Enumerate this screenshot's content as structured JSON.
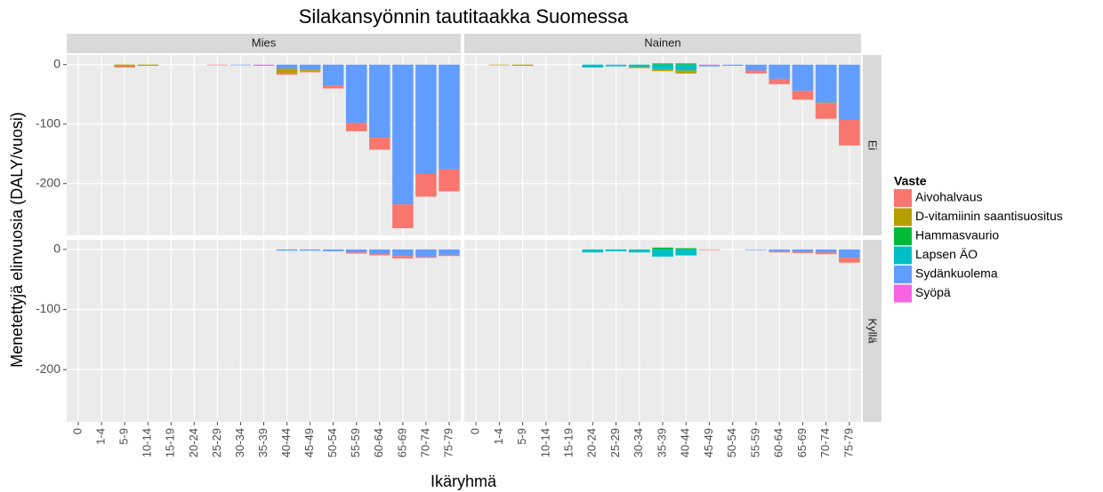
{
  "chart_data": {
    "type": "bar",
    "stacked": true,
    "title": "Silakansyönnin tautitaakka Suomessa",
    "xlabel": "Ikäryhmä",
    "ylabel": "Menetettyjä elinvuosia (DALY/vuosi)",
    "legend_title": "Vaste",
    "facet_cols": [
      "Mies",
      "Nainen"
    ],
    "facet_rows": [
      "Ei",
      "Kyllä"
    ],
    "categories": [
      "0",
      "1-4",
      "5-9",
      "10-14",
      "15-19",
      "20-24",
      "25-29",
      "30-34",
      "35-39",
      "40-44",
      "45-49",
      "50-54",
      "55-59",
      "60-64",
      "65-69",
      "70-74",
      "75-79"
    ],
    "ylim": [
      -287,
      16
    ],
    "yticks": [
      0,
      -100,
      -200
    ],
    "grid": true,
    "series": [
      {
        "name": "Aivohalvaus",
        "color": "#F8766D",
        "values": [
          [
            0,
            0,
            -2,
            0,
            0,
            0,
            -1,
            0,
            0,
            -3,
            -2,
            -5,
            -14,
            -20,
            -40,
            -38,
            -37
          ],
          [
            0,
            0,
            0,
            0,
            0,
            0,
            0,
            0,
            0,
            0,
            0,
            0,
            -5,
            -9,
            -15,
            -26,
            -43
          ],
          [
            0,
            0,
            0,
            0,
            0,
            0,
            0,
            0,
            0,
            0,
            0,
            0,
            -2,
            -2,
            -4,
            -2,
            -2
          ],
          [
            0,
            0,
            0,
            0,
            0,
            0,
            0,
            0,
            0,
            0,
            -1,
            0,
            0,
            -2,
            -2,
            -3,
            -8
          ]
        ]
      },
      {
        "name": "D-vitamiinin saantisuositus",
        "color": "#B79F00",
        "values": [
          [
            0,
            0,
            -3,
            -2,
            0,
            0,
            0,
            0,
            0,
            -7,
            -2,
            0,
            0,
            0,
            0,
            0,
            0
          ],
          [
            0,
            -1,
            -2,
            0,
            0,
            0,
            0,
            -2,
            -3,
            -5,
            0,
            0,
            0,
            0,
            0,
            -1,
            0
          ],
          [
            0,
            0,
            0,
            0,
            0,
            0,
            0,
            0,
            0,
            0,
            0,
            0,
            0,
            0,
            0,
            0,
            0
          ],
          [
            0,
            0,
            0,
            0,
            0,
            0,
            0,
            0,
            0,
            0,
            0,
            0,
            0,
            0,
            0,
            0,
            0
          ]
        ]
      },
      {
        "name": "Hammasvaurio",
        "color": "#00BA38",
        "values": [
          [
            0,
            0,
            0,
            0,
            0,
            0,
            0,
            0,
            0,
            0,
            0,
            0,
            0,
            0,
            0,
            0,
            0
          ],
          [
            0,
            0,
            0,
            0,
            0,
            0,
            0,
            0,
            2,
            2,
            0,
            0,
            0,
            0,
            0,
            0,
            0
          ],
          [
            0,
            0,
            0,
            0,
            0,
            0,
            0,
            0,
            0,
            0,
            0,
            0,
            0,
            0,
            0,
            0,
            0
          ],
          [
            0,
            0,
            0,
            0,
            0,
            0,
            0,
            0,
            3,
            2,
            0,
            0,
            0,
            0,
            0,
            0,
            0
          ]
        ]
      },
      {
        "name": "Lapsen ÄO",
        "color": "#00BFC4",
        "values": [
          [
            0,
            0,
            0,
            0,
            0,
            0,
            0,
            0,
            0,
            0,
            0,
            0,
            0,
            0,
            0,
            0,
            0
          ],
          [
            0,
            0,
            0,
            0,
            0,
            -5,
            -2,
            -4,
            -8,
            -10,
            0,
            0,
            0,
            0,
            0,
            0,
            0
          ],
          [
            0,
            0,
            0,
            0,
            0,
            0,
            0,
            0,
            0,
            0,
            0,
            0,
            0,
            0,
            0,
            0,
            0
          ],
          [
            0,
            0,
            0,
            0,
            0,
            -5,
            -3,
            -5,
            -12,
            -10,
            0,
            0,
            0,
            0,
            0,
            0,
            0
          ]
        ]
      },
      {
        "name": "Sydänkuolema",
        "color": "#619CFF",
        "values": [
          [
            0,
            0,
            0,
            0,
            0,
            0,
            0,
            -1,
            -1,
            -7,
            -9,
            -35,
            -98,
            -123,
            -235,
            -184,
            -176
          ],
          [
            0,
            0,
            0,
            0,
            0,
            0,
            -1,
            0,
            0,
            0,
            -2,
            -2,
            -10,
            -24,
            -44,
            -64,
            -93
          ],
          [
            0,
            0,
            0,
            0,
            0,
            0,
            0,
            0,
            0,
            -2,
            -2,
            -3,
            -5,
            -8,
            -11,
            -12,
            -9
          ],
          [
            0,
            0,
            0,
            0,
            0,
            0,
            0,
            0,
            0,
            0,
            0,
            0,
            -1,
            -3,
            -4,
            -5,
            -14
          ]
        ]
      },
      {
        "name": "Syöpä",
        "color": "#F564E3",
        "values": [
          [
            0,
            0,
            0,
            0,
            0,
            0,
            0,
            0,
            -1,
            0,
            0,
            0,
            0,
            0,
            0,
            0,
            0
          ],
          [
            0,
            0,
            0,
            0,
            0,
            0,
            0,
            0,
            0,
            0,
            -1,
            0,
            0,
            0,
            0,
            0,
            0
          ],
          [
            0,
            0,
            0,
            0,
            0,
            0,
            0,
            0,
            0,
            0,
            0,
            0,
            0,
            0,
            0,
            0,
            0
          ],
          [
            0,
            0,
            0,
            0,
            0,
            0,
            0,
            0,
            0,
            0,
            0,
            0,
            0,
            0,
            0,
            0,
            0
          ]
        ]
      }
    ]
  }
}
